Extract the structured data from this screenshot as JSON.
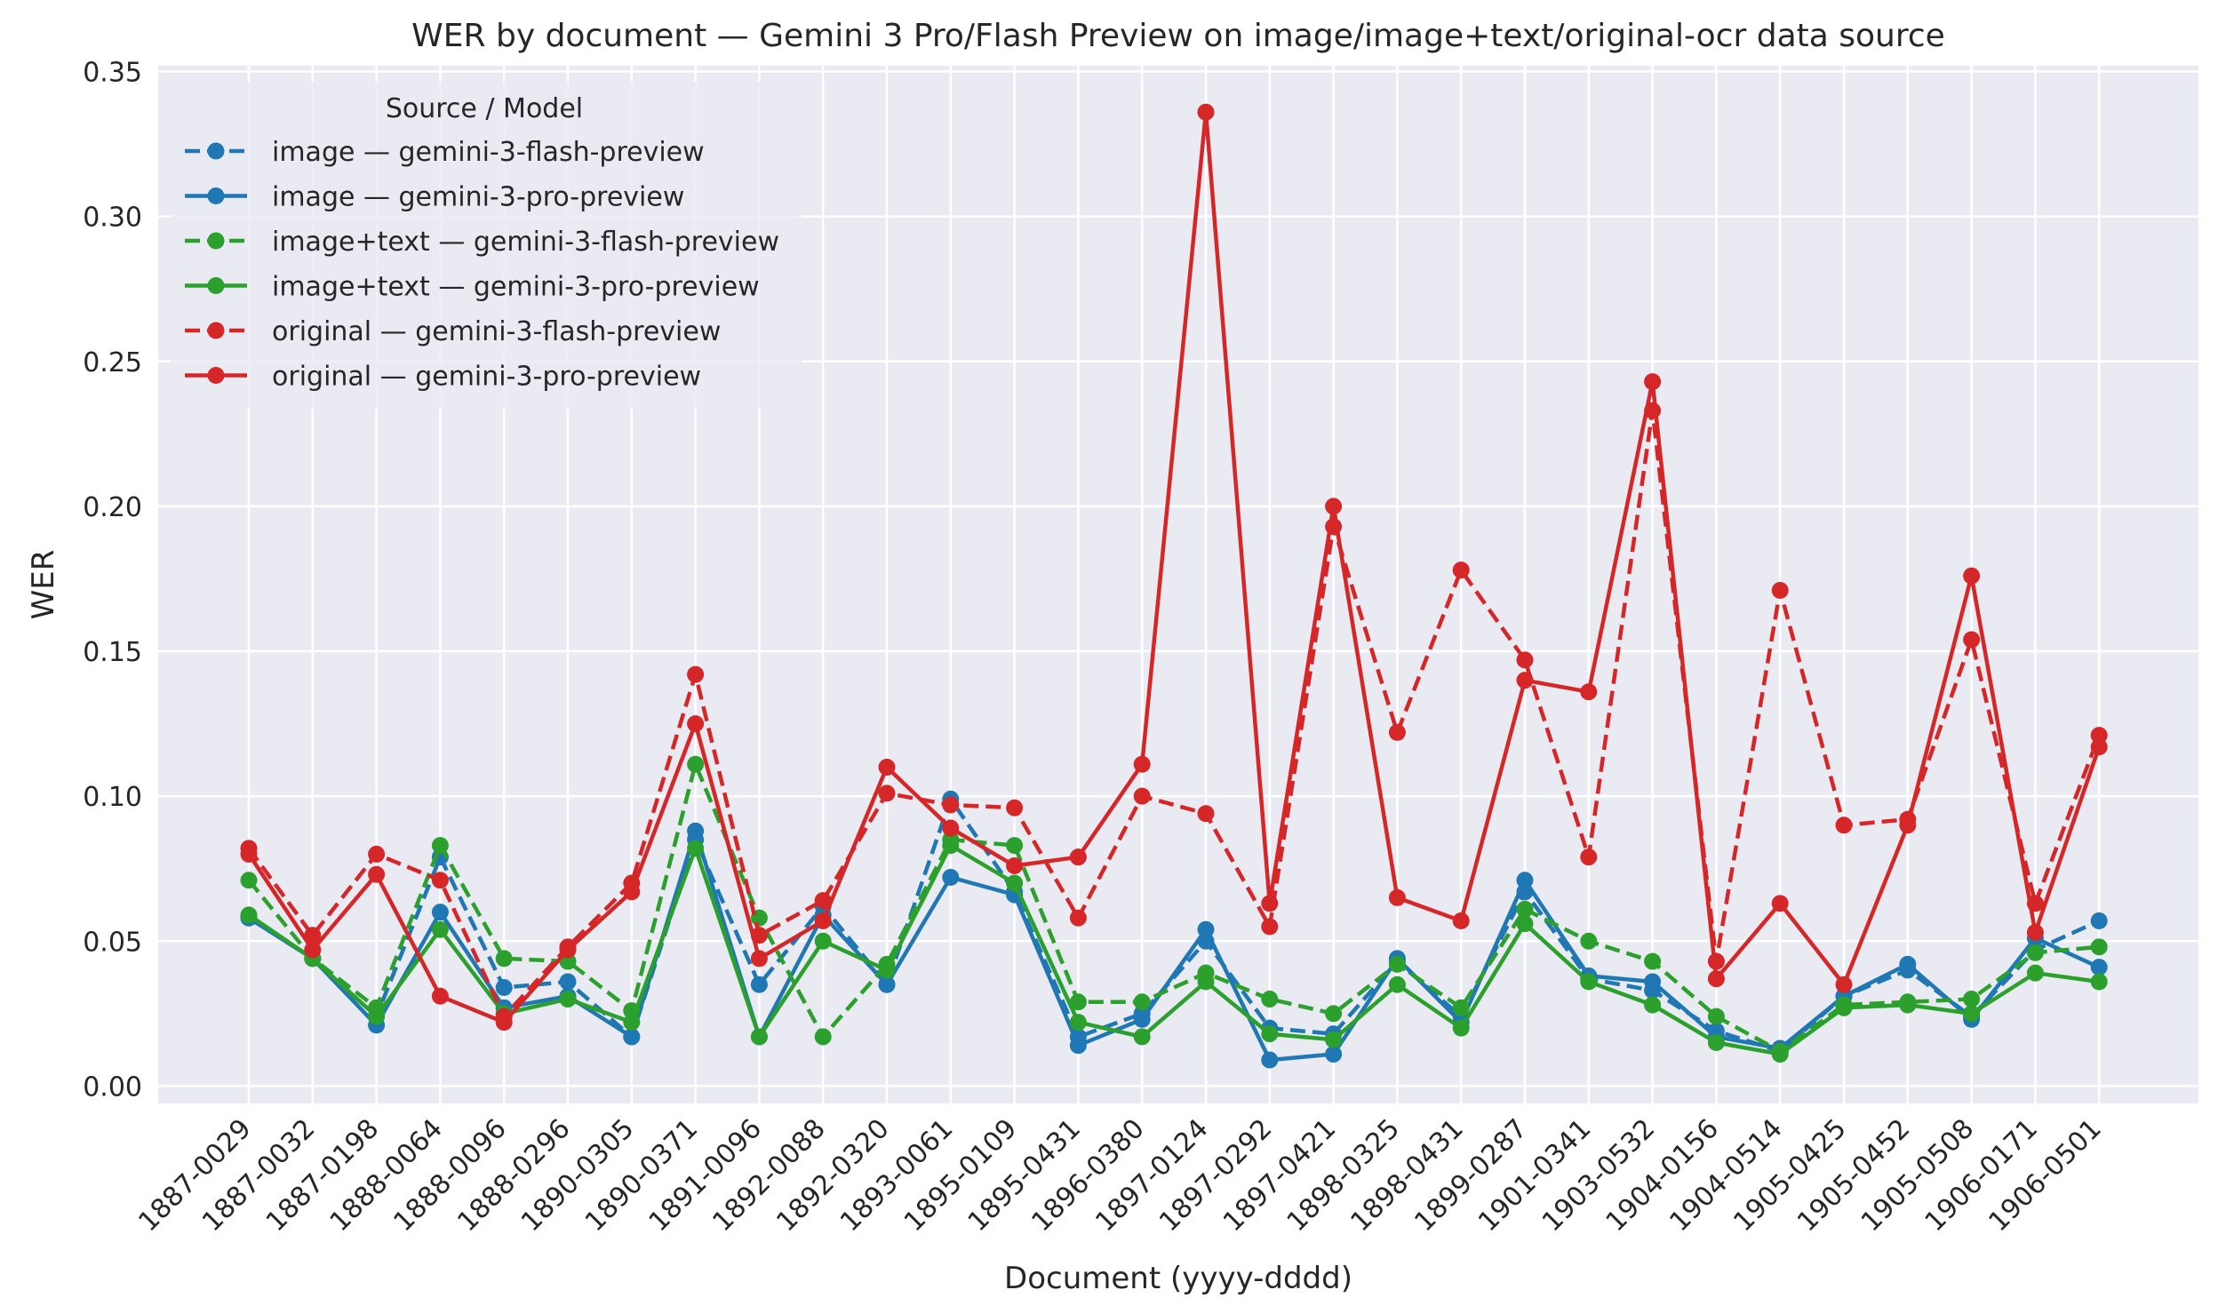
{
  "chart_data": {
    "type": "line",
    "title": "WER by document — Gemini 3 Pro/Flash Preview on image/image+text/original-ocr data source",
    "xlabel": "Document (yyyy-dddd)",
    "ylabel": "WER",
    "ylim": [
      -0.006,
      0.352
    ],
    "yticks": [
      "0.00",
      "0.05",
      "0.10",
      "0.15",
      "0.20",
      "0.25",
      "0.30",
      "0.35"
    ],
    "grid": true,
    "legend": {
      "title": "Source / Model",
      "placement": "top-left"
    },
    "categories": [
      "1887-0029",
      "1887-0032",
      "1887-0198",
      "1888-0064",
      "1888-0096",
      "1888-0296",
      "1890-0305",
      "1890-0371",
      "1891-0096",
      "1892-0088",
      "1892-0320",
      "1893-0061",
      "1895-0109",
      "1895-0431",
      "1896-0380",
      "1897-0124",
      "1897-0292",
      "1897-0421",
      "1898-0325",
      "1898-0431",
      "1899-0287",
      "1901-0341",
      "1903-0532",
      "1904-0156",
      "1904-0514",
      "1905-0425",
      "1905-0452",
      "1905-0508",
      "1906-0171",
      "1906-0501"
    ],
    "series": [
      {
        "name": "image — gemini-3-flash-preview",
        "color": "#1f77b4",
        "dash": "dashed",
        "values": [
          0.058,
          0.044,
          0.024,
          0.079,
          0.034,
          0.036,
          0.017,
          0.085,
          0.035,
          0.062,
          0.035,
          0.099,
          0.067,
          0.017,
          0.025,
          0.05,
          0.02,
          0.018,
          0.043,
          0.024,
          0.067,
          0.037,
          0.033,
          0.019,
          0.012,
          0.031,
          0.04,
          0.024,
          0.047,
          0.057
        ]
      },
      {
        "name": "image — gemini-3-pro-preview",
        "color": "#1f77b4",
        "dash": "solid",
        "values": [
          0.058,
          0.044,
          0.021,
          0.06,
          0.027,
          0.031,
          0.017,
          0.088,
          0.017,
          0.059,
          0.035,
          0.072,
          0.066,
          0.014,
          0.023,
          0.054,
          0.009,
          0.011,
          0.044,
          0.022,
          0.071,
          0.038,
          0.036,
          0.017,
          0.013,
          0.031,
          0.042,
          0.023,
          0.051,
          0.041
        ]
      },
      {
        "name": "image+text — gemini-3-flash-preview",
        "color": "#2ca02c",
        "dash": "dashed",
        "values": [
          0.071,
          0.044,
          0.027,
          0.083,
          0.044,
          0.043,
          0.026,
          0.111,
          0.058,
          0.017,
          0.042,
          0.085,
          0.083,
          0.029,
          0.029,
          0.039,
          0.03,
          0.025,
          0.042,
          0.027,
          0.061,
          0.05,
          0.043,
          0.024,
          0.012,
          0.028,
          0.029,
          0.03,
          0.046,
          0.048
        ]
      },
      {
        "name": "image+text — gemini-3-pro-preview",
        "color": "#2ca02c",
        "dash": "solid",
        "values": [
          0.059,
          0.044,
          0.024,
          0.054,
          0.025,
          0.03,
          0.022,
          0.082,
          0.017,
          0.05,
          0.04,
          0.083,
          0.07,
          0.022,
          0.017,
          0.036,
          0.018,
          0.016,
          0.035,
          0.02,
          0.056,
          0.036,
          0.028,
          0.015,
          0.011,
          0.027,
          0.028,
          0.025,
          0.039,
          0.036
        ]
      },
      {
        "name": "original — gemini-3-flash-preview",
        "color": "#d62728",
        "dash": "dashed",
        "values": [
          0.082,
          0.052,
          0.08,
          0.071,
          0.024,
          0.048,
          0.07,
          0.142,
          0.052,
          0.064,
          0.101,
          0.097,
          0.096,
          0.058,
          0.1,
          0.094,
          0.055,
          0.193,
          0.122,
          0.178,
          0.147,
          0.079,
          0.233,
          0.043,
          0.171,
          0.09,
          0.092,
          0.154,
          0.063,
          0.121
        ]
      },
      {
        "name": "original — gemini-3-pro-preview",
        "color": "#d62728",
        "dash": "solid",
        "values": [
          0.08,
          0.047,
          0.073,
          0.031,
          0.022,
          0.047,
          0.067,
          0.125,
          0.044,
          0.057,
          0.11,
          0.089,
          0.076,
          0.079,
          0.111,
          0.336,
          0.063,
          0.2,
          0.065,
          0.057,
          0.14,
          0.136,
          0.243,
          0.037,
          0.063,
          0.035,
          0.09,
          0.176,
          0.053,
          0.117
        ]
      }
    ]
  }
}
